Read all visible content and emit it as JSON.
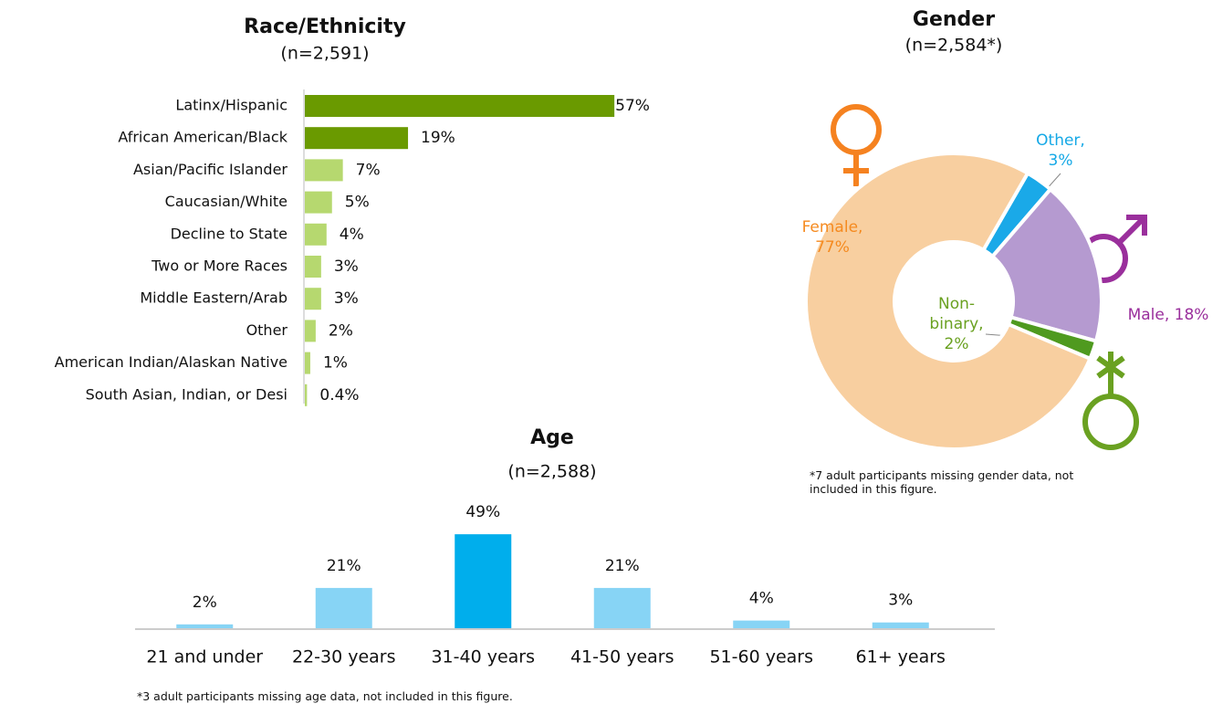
{
  "chart_data": [
    {
      "type": "hbar",
      "title": "Race/Ethnicity",
      "subtitle": "(n=2,591)",
      "categories": [
        "Latinx/Hispanic",
        "African American/Black",
        "Asian/Pacific Islander",
        "Caucasian/White",
        "Decline to State",
        "Two or More Races",
        "Middle Eastern/Arab",
        "Other",
        "American Indian/Alaskan Native",
        "South Asian, Indian, or Desi"
      ],
      "values": [
        57,
        19,
        7,
        5,
        4,
        3,
        3,
        2,
        1,
        0.4
      ],
      "value_labels": [
        "57%",
        "19%",
        "7%",
        "5%",
        "4%",
        "3%",
        "3%",
        "2%",
        "1%",
        "0.4%"
      ],
      "colors": [
        "#6a9a00",
        "#6a9a00",
        "#b6d86f",
        "#b6d86f",
        "#b6d86f",
        "#b6d86f",
        "#b6d86f",
        "#b6d86f",
        "#b6d86f",
        "#b6d86f"
      ]
    },
    {
      "type": "donut",
      "title": "Gender",
      "subtitle": "(n=2,584*)",
      "values": [
        3,
        18,
        2,
        77
      ],
      "value_labels": [
        "Other,\n3%",
        "Male, 18%",
        "Non-\nbinary,\n2%",
        "Female,\n77%"
      ],
      "colors": [
        "#1aa9e8",
        "#b59ad0",
        "#4f9a1f",
        "#f8cfa0"
      ],
      "label_colors": [
        "#14a8e6",
        "#9a2f9c",
        "#6aa121",
        "#f58a1f"
      ],
      "note": "*7 adult participants missing gender data, not included in this figure."
    },
    {
      "type": "bar",
      "title": "Age",
      "subtitle": "(n=2,588)",
      "categories": [
        "21 and under",
        "22-30 years",
        "31-40 years",
        "41-50 years",
        "51-60 years",
        "61+ years"
      ],
      "values": [
        2,
        21,
        49,
        21,
        4,
        3
      ],
      "value_labels": [
        "2%",
        "21%",
        "49%",
        "21%",
        "4%",
        "3%"
      ],
      "colors": [
        "#87d4f5",
        "#87d4f5",
        "#00aeec",
        "#87d4f5",
        "#87d4f5",
        "#87d4f5"
      ],
      "note": "*3 adult participants missing age data, not included in this figure."
    }
  ]
}
